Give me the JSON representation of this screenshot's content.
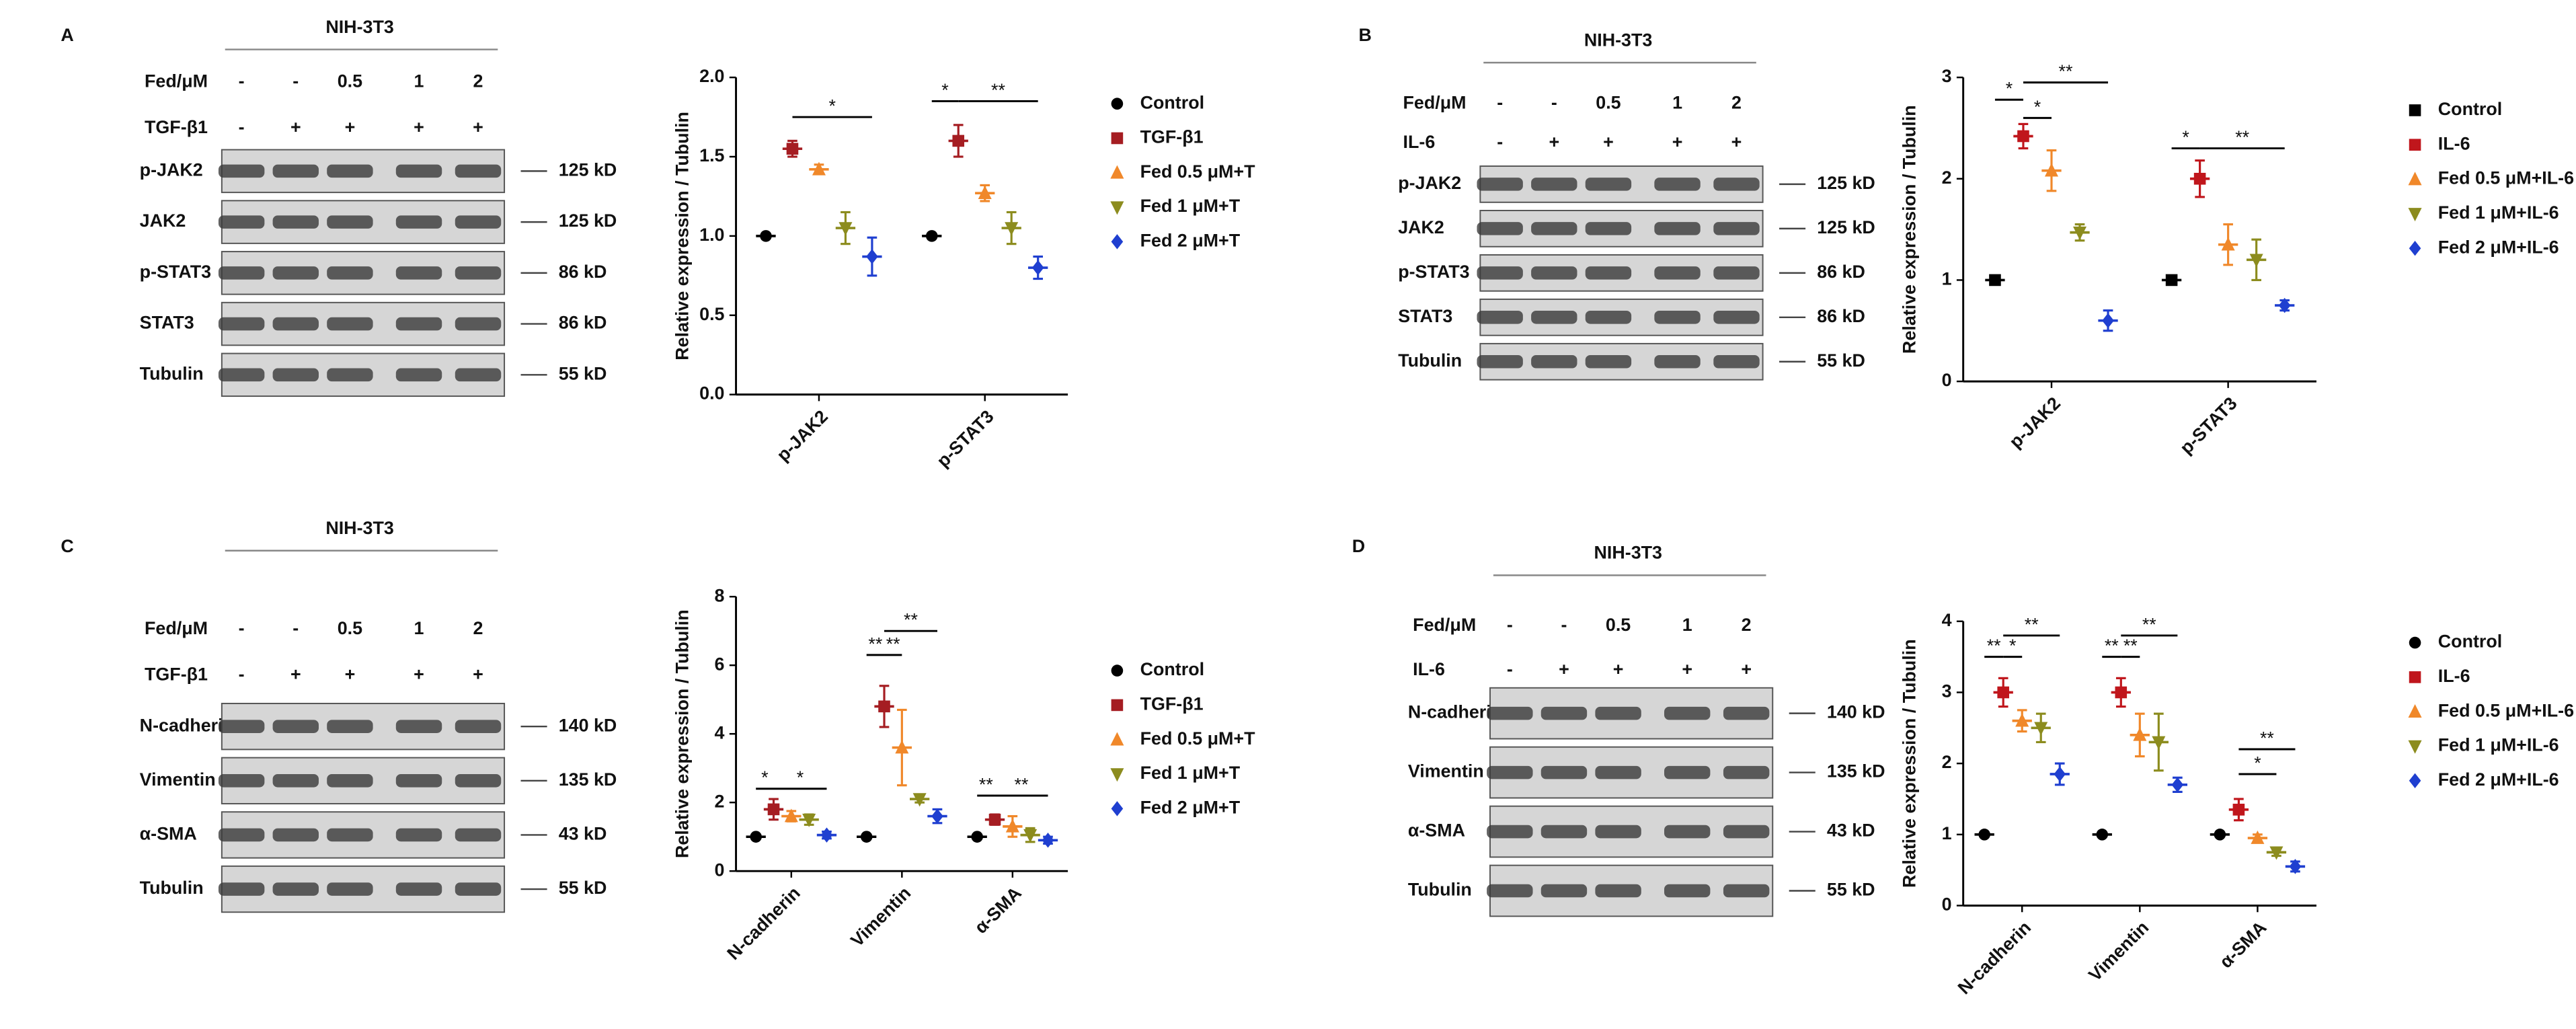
{
  "panels": [
    {
      "label": "A",
      "blot": {
        "cell_line": "NIH-3T3",
        "treatments": [
          {
            "label": "Fed/μM",
            "values": [
              "-",
              "-",
              "0.5",
              "1",
              "2"
            ]
          },
          {
            "label": "TGF-β1",
            "values": [
              "-",
              "+",
              "+",
              "+",
              "+"
            ]
          }
        ],
        "bands": [
          {
            "name": "p-JAK2",
            "size": "125 kD"
          },
          {
            "name": "JAK2",
            "size": "125 kD"
          },
          {
            "name": "p-STAT3",
            "size": "86 kD"
          },
          {
            "name": "STAT3",
            "size": "86 kD"
          },
          {
            "name": "Tubulin",
            "size": "55 kD"
          }
        ]
      }
    },
    {
      "label": "B",
      "blot": {
        "cell_line": "NIH-3T3",
        "treatments": [
          {
            "label": "Fed/μM",
            "values": [
              "-",
              "-",
              "0.5",
              "1",
              "2"
            ]
          },
          {
            "label": "IL-6",
            "values": [
              "-",
              "+",
              "+",
              "+",
              "+"
            ]
          }
        ],
        "bands": [
          {
            "name": "p-JAK2",
            "size": "125 kD"
          },
          {
            "name": "JAK2",
            "size": "125 kD"
          },
          {
            "name": "p-STAT3",
            "size": "86 kD"
          },
          {
            "name": "STAT3",
            "size": "86 kD"
          },
          {
            "name": "Tubulin",
            "size": "55 kD"
          }
        ]
      }
    },
    {
      "label": "C",
      "blot": {
        "cell_line": "NIH-3T3",
        "treatments": [
          {
            "label": "Fed/μM",
            "values": [
              "-",
              "-",
              "0.5",
              "1",
              "2"
            ]
          },
          {
            "label": "TGF-β1",
            "values": [
              "-",
              "+",
              "+",
              "+",
              "+"
            ]
          }
        ],
        "bands": [
          {
            "name": "N-cadherin",
            "size": "140 kD"
          },
          {
            "name": "Vimentin",
            "size": "135 kD"
          },
          {
            "name": "α-SMA",
            "size": "43 kD"
          },
          {
            "name": "Tubulin",
            "size": "55 kD"
          }
        ]
      }
    },
    {
      "label": "D",
      "blot": {
        "cell_line": "NIH-3T3",
        "treatments": [
          {
            "label": "Fed/μM",
            "values": [
              "-",
              "-",
              "0.5",
              "1",
              "2"
            ]
          },
          {
            "label": "IL-6",
            "values": [
              "-",
              "+",
              "+",
              "+",
              "+"
            ]
          }
        ],
        "bands": [
          {
            "name": "N-cadherin",
            "size": "140 kD"
          },
          {
            "name": "Vimentin",
            "size": "135 kD"
          },
          {
            "name": "α-SMA",
            "size": "43 kD"
          },
          {
            "name": "Tubulin",
            "size": "55 kD"
          }
        ]
      }
    }
  ],
  "chart_data": [
    {
      "type": "dot",
      "ylabel": "Relative expression / Tubulin",
      "categories": [
        "p-JAK2",
        "p-STAT3"
      ],
      "ylim": [
        0,
        2
      ],
      "yticks": [
        {
          "value": 0,
          "label": "0.0"
        },
        0.5,
        {
          "value": 1,
          "label": "1.0"
        },
        1.5,
        {
          "value": 2,
          "label": "2.0"
        }
      ],
      "series": [
        {
          "name": "Control",
          "color": "#000000",
          "marker": "circle",
          "values": [
            1,
            1
          ],
          "errors": [
            0,
            0
          ]
        },
        {
          "name": "TGF-β1",
          "color": "#a51d22",
          "marker": "square",
          "values": [
            1.55,
            1.6
          ],
          "errors": [
            0.05,
            0.1
          ]
        },
        {
          "name": "Fed 0.5 μM+T",
          "color": "#f0882a",
          "marker": "triangle",
          "values": [
            1.42,
            1.27
          ],
          "errors": [
            0.03,
            0.05
          ]
        },
        {
          "name": "Fed 1 μM+T",
          "color": "#8c8c1e",
          "marker": "triangle-down",
          "values": [
            1.05,
            1.05
          ],
          "errors": [
            0.1,
            0.1
          ]
        },
        {
          "name": "Fed 2 μM+T",
          "color": "#1f3fd0",
          "marker": "diamond",
          "values": [
            0.87,
            0.8
          ],
          "errors": [
            0.12,
            0.07
          ]
        }
      ],
      "annotations": [
        {
          "text": "*",
          "category": 0,
          "series": [
            1,
            4
          ],
          "y": 1.75
        },
        {
          "text": "*",
          "category": 1,
          "series": [
            0,
            1
          ],
          "y": 1.85
        },
        {
          "text": "**",
          "category": 1,
          "series": [
            1,
            4
          ],
          "y": 1.85
        }
      ]
    },
    {
      "type": "dot",
      "ylabel": "Relative expression / Tubulin",
      "categories": [
        "p-JAK2",
        "p-STAT3"
      ],
      "ylim": [
        0,
        3
      ],
      "yticks": [
        0,
        1,
        2,
        3
      ],
      "series": [
        {
          "name": "Control",
          "color": "#000000",
          "marker": "square",
          "values": [
            1,
            1
          ],
          "errors": [
            0,
            0
          ]
        },
        {
          "name": "IL-6",
          "color": "#c0161c",
          "marker": "square",
          "values": [
            2.42,
            2.0
          ],
          "errors": [
            0.12,
            0.18
          ]
        },
        {
          "name": "Fed 0.5 μM+IL-6",
          "color": "#f0882a",
          "marker": "triangle",
          "values": [
            2.08,
            1.35
          ],
          "errors": [
            0.2,
            0.2
          ]
        },
        {
          "name": "Fed 1 μM+IL-6",
          "color": "#8c8c1e",
          "marker": "triangle-down",
          "values": [
            1.47,
            1.2
          ],
          "errors": [
            0.08,
            0.2
          ]
        },
        {
          "name": "Fed 2 μM+IL-6",
          "color": "#1f3fd0",
          "marker": "diamond",
          "values": [
            0.6,
            0.75
          ],
          "errors": [
            0.1,
            0.05
          ]
        }
      ],
      "annotations": [
        {
          "text": "*",
          "category": 0,
          "series": [
            0,
            1
          ],
          "y": 2.78
        },
        {
          "text": "*",
          "category": 0,
          "series": [
            1,
            2
          ],
          "y": 2.6
        },
        {
          "text": "**",
          "category": 0,
          "series": [
            1,
            4
          ],
          "y": 2.95
        },
        {
          "text": "*",
          "category": 1,
          "series": [
            0,
            1
          ],
          "y": 2.3
        },
        {
          "text": "**",
          "category": 1,
          "series": [
            1,
            4
          ],
          "y": 2.3
        }
      ]
    },
    {
      "type": "dot",
      "ylabel": "Relative expression / Tubulin",
      "categories": [
        "N-cadherin",
        "Vimentin",
        "α-SMA"
      ],
      "ylim": [
        0,
        8
      ],
      "yticks": [
        0,
        2,
        4,
        6,
        8
      ],
      "series": [
        {
          "name": "Control",
          "color": "#000000",
          "marker": "circle",
          "values": [
            1,
            1,
            1
          ],
          "errors": [
            0,
            0,
            0
          ]
        },
        {
          "name": "TGF-β1",
          "color": "#a51d22",
          "marker": "square",
          "values": [
            1.8,
            4.8,
            1.5
          ],
          "errors": [
            0.3,
            0.6,
            0.15
          ]
        },
        {
          "name": "Fed 0.5 μM+T",
          "color": "#f0882a",
          "marker": "triangle",
          "values": [
            1.6,
            3.6,
            1.3
          ],
          "errors": [
            0.15,
            1.1,
            0.3
          ]
        },
        {
          "name": "Fed 1 μM+T",
          "color": "#8c8c1e",
          "marker": "triangle-down",
          "values": [
            1.5,
            2.1,
            1.05
          ],
          "errors": [
            0.15,
            0.1,
            0.2
          ]
        },
        {
          "name": "Fed 2 μM+T",
          "color": "#1f3fd0",
          "marker": "diamond",
          "values": [
            1.05,
            1.6,
            0.9
          ],
          "errors": [
            0.1,
            0.2,
            0.1
          ]
        }
      ],
      "annotations": [
        {
          "text": "*",
          "category": 0,
          "series": [
            0,
            1
          ],
          "y": 2.4
        },
        {
          "text": "*",
          "category": 0,
          "series": [
            1,
            4
          ],
          "y": 2.4
        },
        {
          "text": "**",
          "category": 1,
          "series": [
            0,
            1
          ],
          "y": 6.3
        },
        {
          "text": "**",
          "category": 1,
          "series": [
            1,
            2
          ],
          "y": 6.3
        },
        {
          "text": "**",
          "category": 1,
          "series": [
            1,
            4
          ],
          "y": 7.0
        },
        {
          "text": "**",
          "category": 2,
          "series": [
            0,
            1
          ],
          "y": 2.2
        },
        {
          "text": "**",
          "category": 2,
          "series": [
            1,
            4
          ],
          "y": 2.2
        }
      ]
    },
    {
      "type": "dot",
      "ylabel": "Relative expression / Tubulin",
      "categories": [
        "N-cadherin",
        "Vimentin",
        "α-SMA"
      ],
      "ylim": [
        0,
        4
      ],
      "yticks": [
        0,
        1,
        2,
        3,
        4
      ],
      "series": [
        {
          "name": "Control",
          "color": "#000000",
          "marker": "circle",
          "values": [
            1,
            1,
            1
          ],
          "errors": [
            0,
            0,
            0
          ]
        },
        {
          "name": "IL-6",
          "color": "#c0161c",
          "marker": "square",
          "values": [
            3.0,
            3.0,
            1.35
          ],
          "errors": [
            0.2,
            0.2,
            0.15
          ]
        },
        {
          "name": "Fed 0.5 μM+IL-6",
          "color": "#f0882a",
          "marker": "triangle",
          "values": [
            2.6,
            2.4,
            0.95
          ],
          "errors": [
            0.15,
            0.3,
            0.05
          ]
        },
        {
          "name": "Fed 1 μM+IL-6",
          "color": "#8c8c1e",
          "marker": "triangle-down",
          "values": [
            2.5,
            2.3,
            0.75
          ],
          "errors": [
            0.2,
            0.4,
            0.05
          ]
        },
        {
          "name": "Fed 2 μM+IL-6",
          "color": "#1f3fd0",
          "marker": "diamond",
          "values": [
            1.85,
            1.7,
            0.55
          ],
          "errors": [
            0.15,
            0.1,
            0.07
          ]
        }
      ],
      "annotations": [
        {
          "text": "**",
          "category": 0,
          "series": [
            0,
            1
          ],
          "y": 3.5
        },
        {
          "text": "*",
          "category": 0,
          "series": [
            1,
            2
          ],
          "y": 3.5
        },
        {
          "text": "**",
          "category": 0,
          "series": [
            1,
            4
          ],
          "y": 3.8
        },
        {
          "text": "**",
          "category": 1,
          "series": [
            0,
            1
          ],
          "y": 3.5
        },
        {
          "text": "**",
          "category": 1,
          "series": [
            1,
            2
          ],
          "y": 3.5
        },
        {
          "text": "**",
          "category": 1,
          "series": [
            1,
            4
          ],
          "y": 3.8
        },
        {
          "text": "*",
          "category": 2,
          "series": [
            1,
            3
          ],
          "y": 1.85
        },
        {
          "text": "**",
          "category": 2,
          "series": [
            1,
            4
          ],
          "y": 2.2
        }
      ]
    }
  ]
}
